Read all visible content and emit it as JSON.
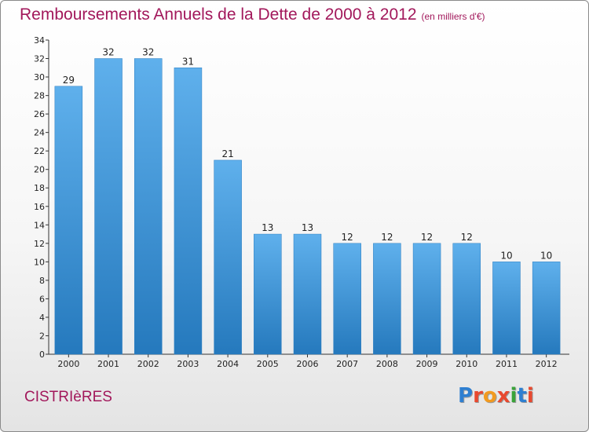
{
  "title": "Remboursements Annuels de la Dette de 2000 à 2012",
  "subtitle": "(en milliers d'€)",
  "commune": "CISTRIèRES",
  "logo": {
    "text": "Proxiti",
    "colors": [
      "#2e7fd1",
      "#e8492f",
      "#f29a1f",
      "#e8492f",
      "#3aa33a",
      "#2e7fd1",
      "#e8492f"
    ]
  },
  "colors": {
    "bar_light": "#5fb0ec",
    "bar_dark": "#2579bd",
    "title": "#a2185b"
  },
  "chart_data": {
    "type": "bar",
    "categories": [
      "2000",
      "2001",
      "2002",
      "2003",
      "2004",
      "2005",
      "2006",
      "2007",
      "2008",
      "2009",
      "2010",
      "2011",
      "2012"
    ],
    "values": [
      29,
      32,
      32,
      31,
      21,
      13,
      13,
      12,
      12,
      12,
      12,
      10,
      10
    ],
    "ylim": [
      0,
      34
    ],
    "yticks": [
      0,
      2,
      4,
      6,
      8,
      10,
      12,
      14,
      16,
      18,
      20,
      22,
      24,
      26,
      28,
      30,
      32,
      34
    ],
    "xlabel": "",
    "ylabel": "",
    "grid": false,
    "data_labels": true
  }
}
